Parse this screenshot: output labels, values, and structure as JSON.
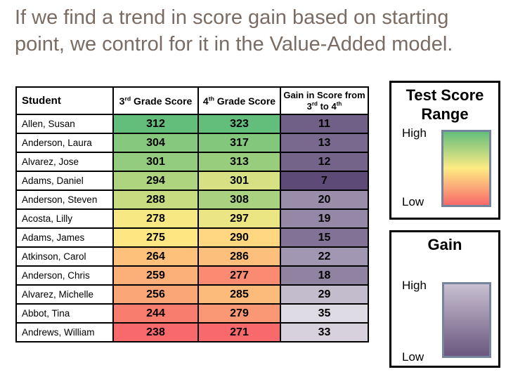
{
  "title": {
    "text": "If we find a trend in score gain based on starting point, we control for it in the Value-Added model.",
    "color": "#7B6C63"
  },
  "table": {
    "columns": {
      "student": "Student",
      "g3_num": "3",
      "g3_sup": "rd",
      "g3_rest": " Grade Score",
      "g4_num": "4",
      "g4_sup": "th",
      "g4_rest": " Grade Score",
      "gain_line1": "Gain in Score from",
      "gain_from_num": "3",
      "gain_from_sup": "rd",
      "gain_to": " to 4",
      "gain_to_sup": "th"
    },
    "rows": [
      {
        "name": "Allen, Susan",
        "s3": "312",
        "s3c": "#63BE7B",
        "s4": "323",
        "s4c": "#63BE7B",
        "gain": "11",
        "gainc": "#705F87"
      },
      {
        "name": "Anderson, Laura",
        "s3": "304",
        "s3c": "#86C87D",
        "s4": "317",
        "s4c": "#83C77D",
        "gain": "13",
        "gainc": "#79698F"
      },
      {
        "name": "Alvarez, Jose",
        "s3": "301",
        "s3c": "#93CC7E",
        "s4": "313",
        "s4c": "#98CD7E",
        "gain": "12",
        "gainc": "#746489"
      },
      {
        "name": "Adams, Daniel",
        "s3": "294",
        "s3c": "#AFD480",
        "s4": "301",
        "s4c": "#D7E082",
        "gain": "7",
        "gainc": "#5D4A77"
      },
      {
        "name": "Anderson, Steven",
        "s3": "288",
        "s3c": "#C8DB81",
        "s4": "308",
        "s4c": "#A8D27F",
        "gain": "20",
        "gainc": "#998DAA"
      },
      {
        "name": "Acosta, Lilly",
        "s3": "278",
        "s3c": "#F7E883",
        "s4": "297",
        "s4c": "#ECE583",
        "gain": "19",
        "gainc": "#9588A6"
      },
      {
        "name": "Adams, James",
        "s3": "275",
        "s3c": "#FEE683",
        "s4": "290",
        "s4c": "#FED780",
        "gain": "15",
        "gainc": "#827396"
      },
      {
        "name": "Atkinson, Carol",
        "s3": "264",
        "s3c": "#FDC17C",
        "s4": "286",
        "s4c": "#FCC07C",
        "gain": "22",
        "gainc": "#A297B2"
      },
      {
        "name": "Anderson, Chris",
        "s3": "259",
        "s3c": "#FCB079",
        "s4": "277",
        "s4c": "#FA8B72",
        "gain": "18",
        "gainc": "#9083A2"
      },
      {
        "name": "Alvarez, Michelle",
        "s3": "256",
        "s3c": "#FBA677",
        "s4": "285",
        "s4c": "#FCBA7B",
        "gain": "29",
        "gainc": "#C3BCCD"
      },
      {
        "name": "Abbot, Tina",
        "s3": "244",
        "s3c": "#F97D6F",
        "s4": "279",
        "s4c": "#FA9774",
        "gain": "35",
        "gainc": "#DFDBE5"
      },
      {
        "name": "Andrews, William",
        "s3": "238",
        "s3c": "#F8696B",
        "s4": "271",
        "s4c": "#F8696B",
        "gain": "33",
        "gainc": "#D6D1DD"
      }
    ]
  },
  "legends": {
    "score": {
      "title": "Test Score Range",
      "high": "High",
      "low": "Low",
      "gradient": [
        "#63BE7B",
        "#FFEB84",
        "#F8696B"
      ]
    },
    "gain": {
      "title": "Gain",
      "high": "High",
      "low": "Low",
      "gradient": [
        "#C8C0D1",
        "#6B577F"
      ]
    }
  },
  "colors": {
    "table_border": "#000000",
    "swatch_frame": "#74849A",
    "title_text": "#7B6C63"
  }
}
